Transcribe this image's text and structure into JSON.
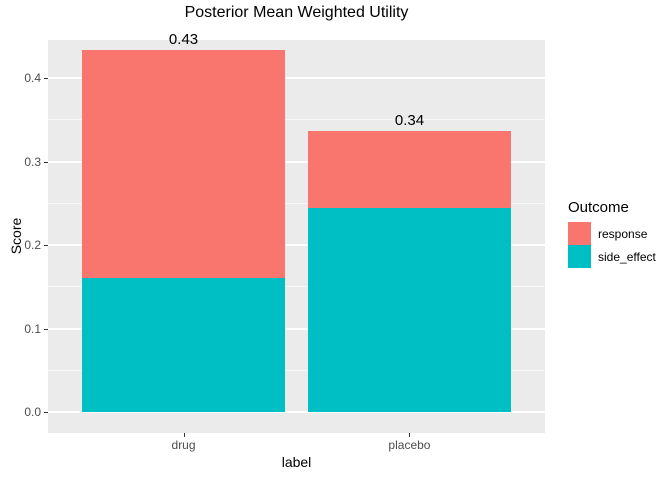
{
  "title": "Posterior Mean Weighted Utility",
  "chart_data": {
    "type": "bar",
    "stacked": true,
    "orientation": "vertical",
    "categories": [
      "drug",
      "placebo"
    ],
    "series": [
      {
        "name": "response",
        "color": "#F8766D",
        "values": [
          0.274,
          0.093
        ]
      },
      {
        "name": "side_effect",
        "color": "#00BFC4",
        "values": [
          0.16,
          0.244
        ]
      }
    ],
    "total_labels": [
      "0.43",
      "0.34"
    ],
    "xlabel": "label",
    "ylabel": "Score",
    "ylim": [
      -0.025,
      0.446
    ],
    "yticks": [
      0.0,
      0.1,
      0.2,
      0.3,
      0.4
    ],
    "ytick_labels": [
      "0.0",
      "0.1",
      "0.2",
      "0.3",
      "0.4"
    ],
    "yminor": [
      0.05,
      0.15,
      0.25,
      0.35,
      0.45
    ],
    "grid": true,
    "legend_position": "right"
  },
  "legend": {
    "title": "Outcome",
    "items": [
      {
        "label": "response",
        "color": "#F8766D"
      },
      {
        "label": "side_effect",
        "color": "#00BFC4"
      }
    ]
  },
  "style": {
    "panel_bg": "#EBEBEB",
    "grid_major": "#FFFFFF",
    "axis_text_color": "#4D4D4D",
    "tick_mark_color": "#333333",
    "response_color": "#F8766D",
    "side_effect_color": "#00BFC4"
  }
}
